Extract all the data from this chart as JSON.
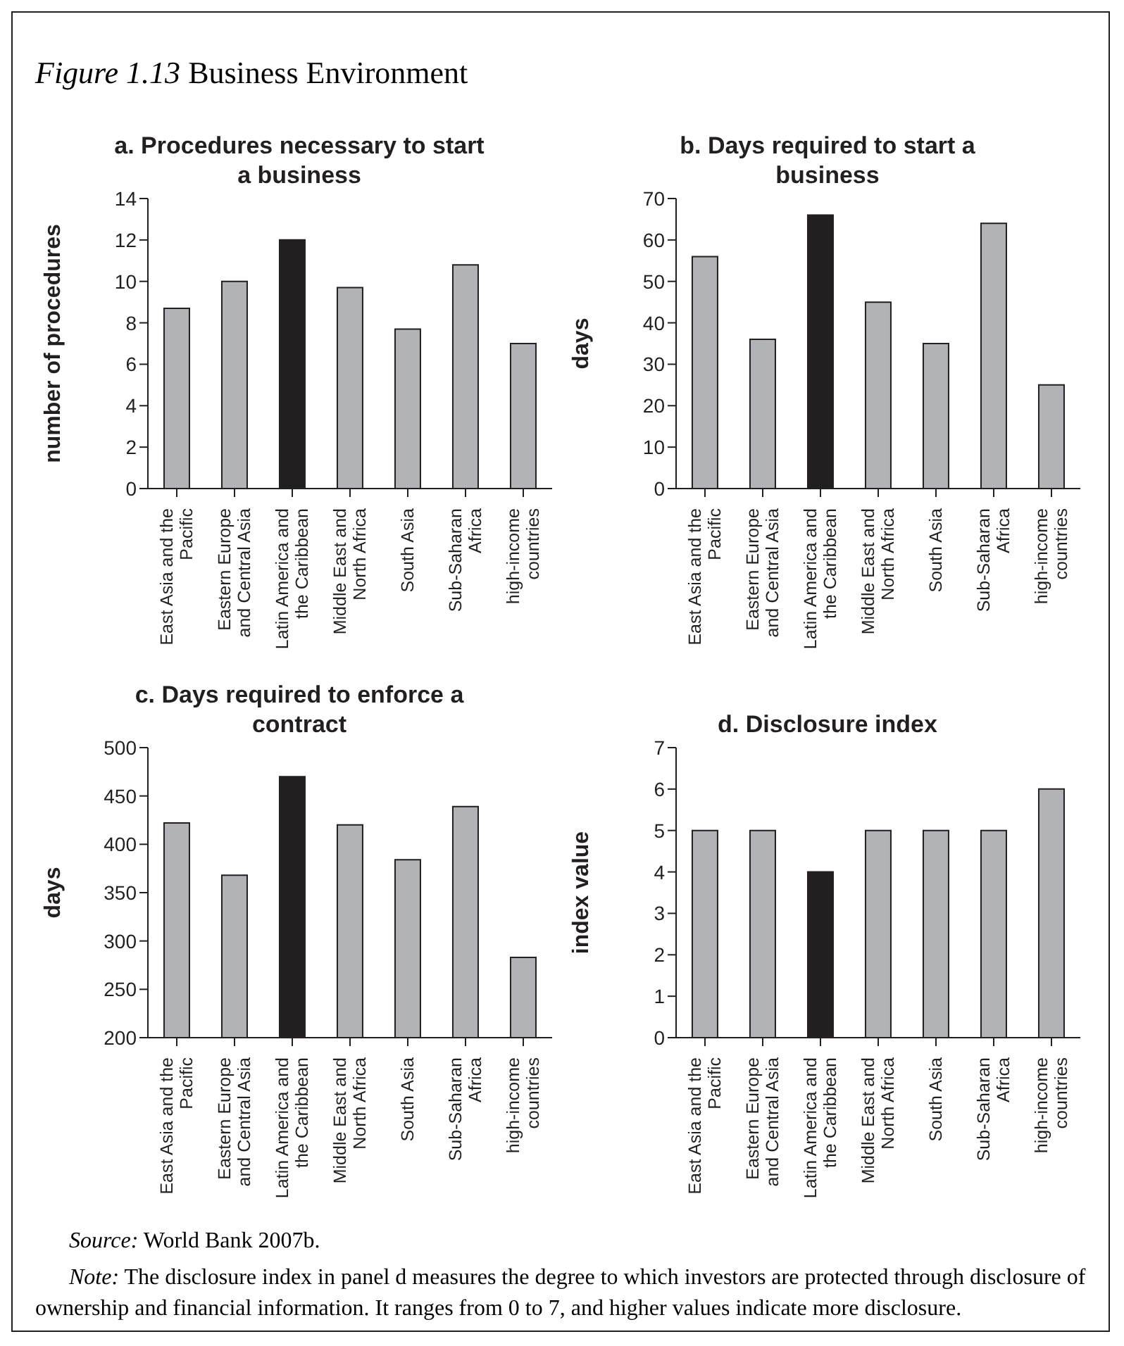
{
  "chart_data": [
    {
      "type": "bar",
      "title": "a. Procedures necessary to start a business",
      "ylabel": "number of procedures",
      "annotations": [
        "Figure 1.13 Business Environment"
      ],
      "categories": [
        "East Asia and the Pacific",
        "Eastern Europe and Central Asia",
        "Latin America and the Caribbean",
        "Middle East and North Africa",
        "South Asia",
        "Sub-Saharan Africa",
        "high-income countries"
      ],
      "values": [
        8.7,
        10,
        12,
        9.7,
        7.7,
        10.8,
        7.0
      ],
      "colors": [
        "#b1b3b6",
        "#b1b3b6",
        "#231f20",
        "#b1b3b6",
        "#b1b3b6",
        "#b1b3b6",
        "#b1b3b6"
      ],
      "ylim": [
        0,
        14
      ],
      "yticks": [
        0,
        2,
        4,
        6,
        8,
        10,
        12,
        14
      ],
      "grid": false,
      "legend": false
    },
    {
      "type": "bar",
      "title": "b. Days required to start a business",
      "ylabel": "days",
      "categories": [
        "East Asia and the Pacific",
        "Eastern Europe and Central Asia",
        "Latin America and the Caribbean",
        "Middle East and North Africa",
        "South Asia",
        "Sub-Saharan Africa",
        "high-income countries"
      ],
      "values": [
        56,
        36,
        66,
        45,
        35,
        64,
        25
      ],
      "colors": [
        "#b1b3b6",
        "#b1b3b6",
        "#231f20",
        "#b1b3b6",
        "#b1b3b6",
        "#b1b3b6",
        "#b1b3b6"
      ],
      "ylim": [
        0,
        70
      ],
      "yticks": [
        0,
        10,
        20,
        30,
        40,
        50,
        60,
        70
      ],
      "grid": false,
      "legend": false
    },
    {
      "type": "bar",
      "title": "c. Days required to enforce a contract",
      "ylabel": "days",
      "categories": [
        "East Asia and the Pacific",
        "Eastern Europe and Central Asia",
        "Latin America and the Caribbean",
        "Middle East and North Africa",
        "South Asia",
        "Sub-Saharan Africa",
        "high-income countries"
      ],
      "values": [
        422,
        368,
        470,
        420,
        384,
        439,
        283
      ],
      "colors": [
        "#b1b3b6",
        "#b1b3b6",
        "#231f20",
        "#b1b3b6",
        "#b1b3b6",
        "#b1b3b6",
        "#b1b3b6"
      ],
      "ylim": [
        200,
        500
      ],
      "yticks": [
        200,
        250,
        300,
        350,
        400,
        450,
        500
      ],
      "grid": false,
      "legend": false
    },
    {
      "type": "bar",
      "title": "d. Disclosure index",
      "ylabel": "index value",
      "annotations": [
        "Source: World Bank 2007b.",
        "Note: The disclosure index in panel d measures the degree to which investors are protected through disclosure of ownership and financial information. It ranges from 0 to 7, and higher values indicate more disclosure."
      ],
      "categories": [
        "East Asia and the Pacific",
        "Eastern Europe and Central Asia",
        "Latin America and the Caribbean",
        "Middle East and North Africa",
        "South Asia",
        "Sub-Saharan Africa",
        "high-income countries"
      ],
      "values": [
        5,
        5,
        4,
        5,
        5,
        5,
        6
      ],
      "colors": [
        "#b1b3b6",
        "#b1b3b6",
        "#231f20",
        "#b1b3b6",
        "#b1b3b6",
        "#b1b3b6",
        "#b1b3b6"
      ],
      "ylim": [
        0,
        7
      ],
      "yticks": [
        0,
        1,
        2,
        3,
        4,
        5,
        6,
        7
      ],
      "grid": false,
      "legend": false
    }
  ]
}
